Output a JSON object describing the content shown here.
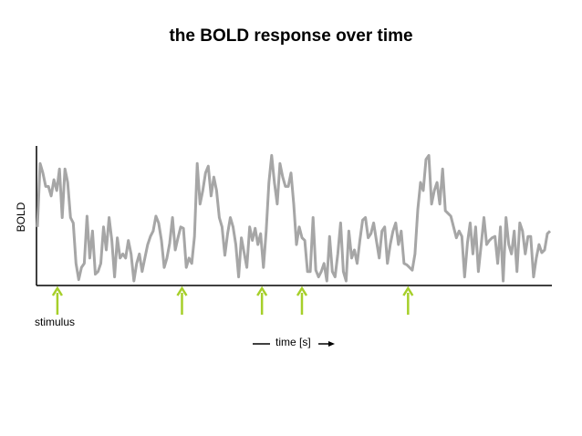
{
  "chart_data": {
    "type": "line",
    "title": "the BOLD response over time",
    "ylabel": "BOLD",
    "xlabel": "time [s]",
    "stimulus_label": "stimulus",
    "xlim": [
      0,
      100
    ],
    "ylim": [
      0,
      100
    ],
    "color": "#a6a6a6",
    "stimulus_color": "#a6cf2a",
    "stimuli": [
      3.9,
      28.2,
      43.8,
      51.6,
      72.3
    ],
    "values": [
      42,
      89,
      82,
      72,
      72,
      65,
      77,
      69,
      85,
      49,
      85,
      75,
      49,
      45,
      15,
      3,
      12,
      15,
      50,
      19,
      39,
      7,
      9,
      15,
      42,
      25,
      49,
      32,
      5,
      34,
      19,
      22,
      19,
      32,
      22,
      2,
      15,
      22,
      9,
      19,
      29,
      35,
      39,
      50,
      45,
      32,
      12,
      19,
      30,
      49,
      25,
      34,
      42,
      41,
      12,
      19,
      15,
      35,
      89,
      59,
      69,
      82,
      87,
      65,
      79,
      69,
      49,
      42,
      21,
      37,
      49,
      42,
      29,
      5,
      34,
      23,
      12,
      42,
      32,
      41,
      29,
      37,
      12,
      39,
      75,
      95,
      75,
      59,
      89,
      79,
      72,
      72,
      82,
      59,
      29,
      42,
      34,
      32,
      9,
      9,
      49,
      10,
      5,
      9,
      15,
      2,
      35,
      9,
      5,
      22,
      45,
      9,
      2,
      39,
      19,
      25,
      15,
      32,
      47,
      49,
      34,
      37,
      45,
      32,
      19,
      39,
      42,
      15,
      29,
      39,
      45,
      29,
      39,
      15,
      14,
      12,
      10,
      22,
      55,
      75,
      69,
      92,
      95,
      59,
      69,
      75,
      59,
      85,
      54,
      52,
      50,
      42,
      34,
      39,
      35,
      5,
      30,
      45,
      22,
      42,
      9,
      29,
      49,
      29,
      32,
      34,
      35,
      15,
      42,
      2,
      49,
      29,
      22,
      39,
      9,
      45,
      39,
      22,
      35,
      35,
      5,
      19,
      29,
      23,
      25,
      37,
      39
    ]
  }
}
